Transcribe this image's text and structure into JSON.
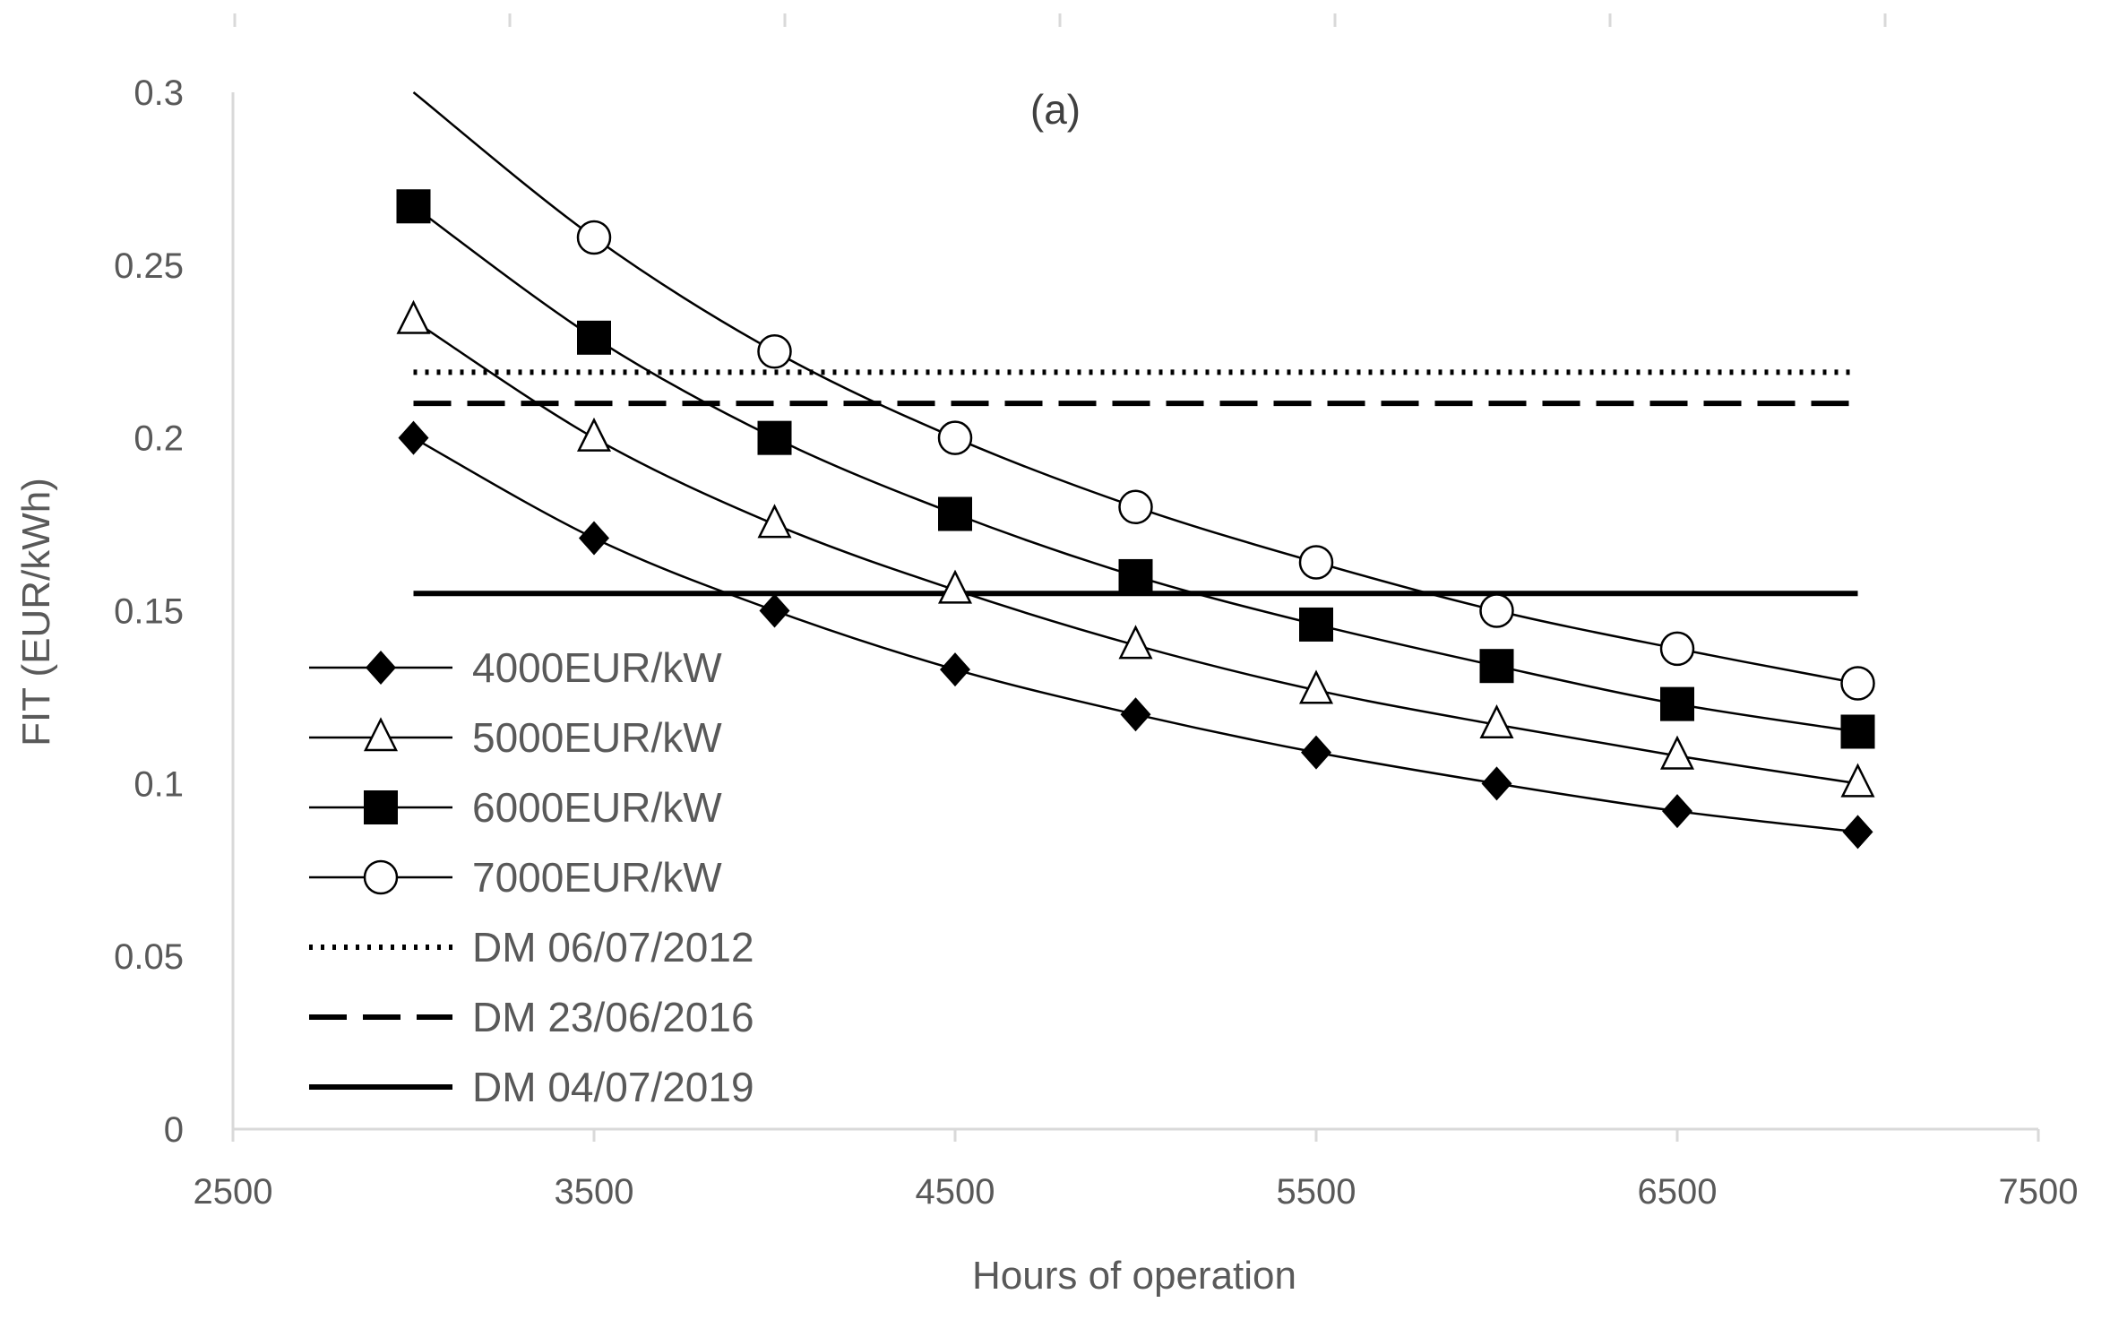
{
  "chart_data": {
    "type": "line",
    "title": "(a)",
    "xlabel": "Hours of operation",
    "ylabel": "FIT (EUR/kWh)",
    "xlim": [
      2500,
      7500
    ],
    "ylim": [
      0,
      0.3
    ],
    "xticks": [
      2500,
      3500,
      4500,
      5500,
      6500,
      7500
    ],
    "xtick_labels": [
      "2500",
      "3500",
      "4500",
      "5500",
      "6500",
      "7500"
    ],
    "yticks": [
      0,
      0.05,
      0.1,
      0.15,
      0.2,
      0.25,
      0.3
    ],
    "ytick_labels": [
      "0",
      "0.05",
      "0.1",
      "0.15",
      "0.2",
      "0.25",
      "0.3"
    ],
    "grid": false,
    "legend_position": "left",
    "x": [
      3000,
      3500,
      4000,
      4500,
      5000,
      5500,
      6000,
      6500,
      7000
    ],
    "series": [
      {
        "name": "4000EUR/kW",
        "marker": "diamond",
        "values": [
          0.2,
          0.171,
          0.15,
          0.133,
          0.12,
          0.109,
          0.1,
          0.092,
          0.086
        ]
      },
      {
        "name": "5000EUR/kW",
        "marker": "triangle",
        "values": [
          0.234,
          0.2,
          0.175,
          0.156,
          0.14,
          0.127,
          0.117,
          0.108,
          0.1
        ]
      },
      {
        "name": "6000EUR/kW",
        "marker": "square",
        "values": [
          0.267,
          0.229,
          0.2,
          0.178,
          0.16,
          0.146,
          0.134,
          0.123,
          0.115
        ]
      },
      {
        "name": "7000EUR/kW",
        "marker": "circle",
        "values": [
          0.3,
          0.258,
          0.225,
          0.2,
          0.18,
          0.164,
          0.15,
          0.139,
          0.129
        ]
      }
    ],
    "reference_lines": [
      {
        "name": "DM 06/07/2012",
        "style": "dotted",
        "value": 0.219,
        "x_range": [
          3000,
          7000
        ]
      },
      {
        "name": "DM 23/06/2016",
        "style": "dashed",
        "value": 0.21,
        "x_range": [
          3000,
          7000
        ]
      },
      {
        "name": "DM 04/07/2019",
        "style": "solid",
        "value": 0.155,
        "x_range": [
          3000,
          7000
        ]
      }
    ]
  }
}
